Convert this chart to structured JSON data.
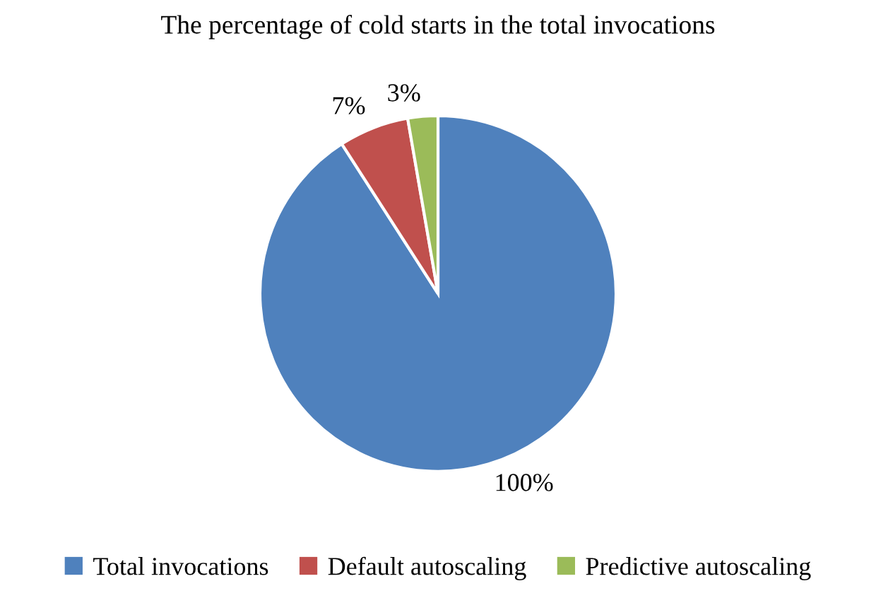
{
  "chart_data": {
    "type": "pie",
    "title": "The percentage of cold starts in the total invocations",
    "categories": [
      "Total invocations",
      "Default autoscaling",
      "Predictive autoscaling"
    ],
    "values": [
      100,
      7,
      3
    ],
    "colors": [
      "#4f81bd",
      "#c0504d",
      "#9bbb59"
    ],
    "value_labels": [
      "100%",
      "7%",
      "3%"
    ],
    "legend": "bottom"
  }
}
